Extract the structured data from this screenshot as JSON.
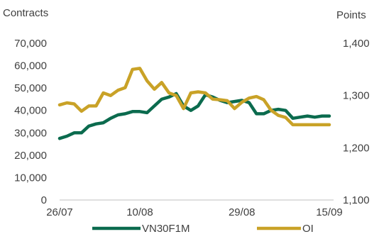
{
  "chart_data": {
    "type": "line",
    "left_axis_label": "Contracts",
    "right_axis_label": "Points",
    "left_ylim": [
      0,
      70000
    ],
    "left_ticks": [
      "0",
      "10,000",
      "20,000",
      "30,000",
      "40,000",
      "50,000",
      "60,000",
      "70,000"
    ],
    "right_ylim": [
      1100,
      1400
    ],
    "right_ticks": [
      "1,100",
      "1,200",
      "1,300",
      "1,400"
    ],
    "x_tick_labels": [
      "26/07",
      "10/08",
      "29/08",
      "15/09"
    ],
    "x_tick_indices": [
      0,
      11,
      25,
      37
    ],
    "n_points": 38,
    "legend_position": "bottom",
    "grid": false,
    "series": [
      {
        "name": "VN30F1M",
        "axis": "left",
        "color": "#0b6b4e",
        "values": [
          27500,
          28500,
          30000,
          30000,
          33000,
          34000,
          34500,
          36500,
          38000,
          38500,
          39500,
          39500,
          39000,
          42000,
          45000,
          46000,
          47500,
          42000,
          40000,
          42000,
          47000,
          46000,
          44500,
          43500,
          44000,
          44500,
          43500,
          38500,
          38500,
          40000,
          40500,
          40000,
          36500,
          37000,
          37500,
          37000,
          37500,
          37500
        ]
      },
      {
        "name": "OI",
        "axis": "right",
        "color": "#c9a227",
        "values": [
          1282,
          1286,
          1284,
          1270,
          1280,
          1280,
          1305,
          1300,
          1310,
          1315,
          1350,
          1352,
          1328,
          1312,
          1325,
          1305,
          1300,
          1275,
          1305,
          1307,
          1305,
          1293,
          1292,
          1290,
          1275,
          1287,
          1295,
          1298,
          1292,
          1272,
          1262,
          1258,
          1244,
          1244,
          1244,
          1244,
          1244,
          1244
        ]
      }
    ]
  }
}
